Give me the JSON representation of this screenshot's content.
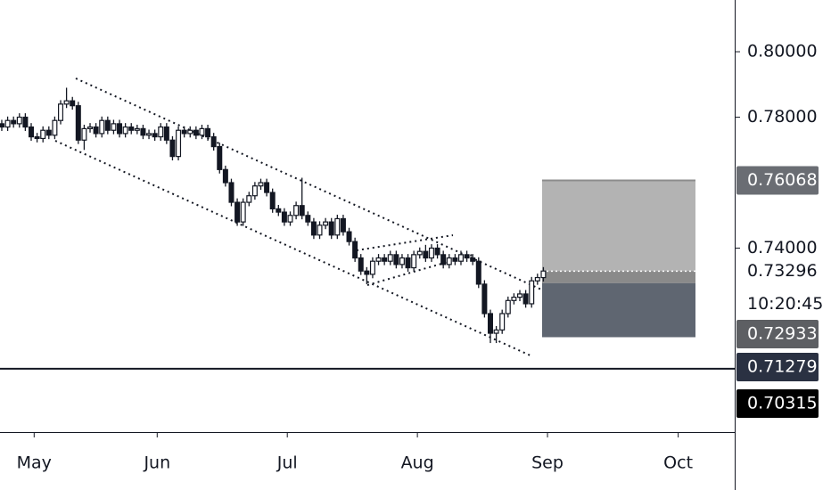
{
  "chart_data": {
    "type": "candlestick",
    "open": [
      0.778,
      0.777,
      0.779,
      0.778,
      0.78,
      0.777,
      0.774,
      0.7735,
      0.776,
      0.7745,
      0.779,
      0.784,
      0.785,
      0.7835,
      0.773,
      0.7765,
      0.777,
      0.775,
      0.779,
      0.776,
      0.778,
      0.775,
      0.777,
      0.776,
      0.7765,
      0.7745,
      0.775,
      0.774,
      0.777,
      0.773,
      0.768,
      0.776,
      0.775,
      0.776,
      0.7745,
      0.7765,
      0.774,
      0.771,
      0.764,
      0.76,
      0.754,
      0.748,
      0.754,
      0.756,
      0.759,
      0.76,
      0.757,
      0.752,
      0.751,
      0.748,
      0.75,
      0.753,
      0.75,
      0.748,
      0.744,
      0.747,
      0.748,
      0.744,
      0.749,
      0.745,
      0.742,
      0.737,
      0.733,
      0.732,
      0.736,
      0.737,
      0.736,
      0.738,
      0.735,
      0.737,
      0.734,
      0.738,
      0.739,
      0.737,
      0.74,
      0.738,
      0.735,
      0.737,
      0.736,
      0.738,
      0.737,
      0.736,
      0.729,
      0.72,
      0.714,
      0.715,
      0.72,
      0.724,
      0.725,
      0.726,
      0.723,
      0.73,
      0.731
    ],
    "high": [
      0.7792,
      0.7802,
      0.7802,
      0.7812,
      0.7812,
      0.7782,
      0.7752,
      0.7772,
      0.7772,
      0.7802,
      0.7852,
      0.789,
      0.7862,
      0.7847,
      0.7777,
      0.7782,
      0.7782,
      0.7802,
      0.7802,
      0.7792,
      0.7792,
      0.7782,
      0.7782,
      0.7777,
      0.7777,
      0.7762,
      0.7762,
      0.7782,
      0.7782,
      0.7742,
      0.7772,
      0.7772,
      0.7772,
      0.7772,
      0.7777,
      0.7777,
      0.7752,
      0.7722,
      0.7652,
      0.7612,
      0.7552,
      0.7552,
      0.7572,
      0.7602,
      0.7612,
      0.7612,
      0.7582,
      0.7532,
      0.7522,
      0.7512,
      0.7542,
      0.7615,
      0.7512,
      0.7492,
      0.7482,
      0.7492,
      0.7492,
      0.7502,
      0.7502,
      0.7462,
      0.7432,
      0.7382,
      0.7342,
      0.7372,
      0.7382,
      0.7382,
      0.7392,
      0.7392,
      0.7382,
      0.7382,
      0.7392,
      0.7402,
      0.741,
      0.7412,
      0.7412,
      0.7392,
      0.7382,
      0.7382,
      0.7392,
      0.7392,
      0.7382,
      0.7372,
      0.7302,
      0.7212,
      0.7162,
      0.7212,
      0.7252,
      0.7262,
      0.7272,
      0.7272,
      0.7312,
      0.7322,
      0.7342
    ],
    "low": [
      0.7758,
      0.7758,
      0.7768,
      0.7768,
      0.7758,
      0.7728,
      0.7723,
      0.7723,
      0.7733,
      0.7733,
      0.7778,
      0.7828,
      0.7823,
      0.7718,
      0.77,
      0.7753,
      0.7738,
      0.7738,
      0.7748,
      0.7748,
      0.7738,
      0.7738,
      0.7748,
      0.7748,
      0.7733,
      0.7733,
      0.7728,
      0.7728,
      0.7718,
      0.7668,
      0.7668,
      0.7738,
      0.7738,
      0.7733,
      0.7733,
      0.7728,
      0.7698,
      0.7628,
      0.7588,
      0.7528,
      0.7468,
      0.7468,
      0.7528,
      0.7548,
      0.7578,
      0.7558,
      0.7508,
      0.7498,
      0.7468,
      0.7468,
      0.7488,
      0.7488,
      0.7468,
      0.7428,
      0.7428,
      0.7458,
      0.7428,
      0.7428,
      0.7438,
      0.7408,
      0.7358,
      0.7318,
      0.729,
      0.7308,
      0.7348,
      0.7348,
      0.7348,
      0.7338,
      0.7338,
      0.7328,
      0.7328,
      0.7368,
      0.7358,
      0.7358,
      0.7368,
      0.7338,
      0.7338,
      0.7348,
      0.7348,
      0.7358,
      0.7348,
      0.7278,
      0.7188,
      0.711,
      0.711,
      0.7138,
      0.7188,
      0.7228,
      0.7238,
      0.7218,
      0.7218,
      0.7288,
      0.7298
    ],
    "close": [
      0.777,
      0.779,
      0.778,
      0.78,
      0.777,
      0.774,
      0.7735,
      0.776,
      0.7745,
      0.779,
      0.784,
      0.785,
      0.7835,
      0.773,
      0.7765,
      0.777,
      0.775,
      0.779,
      0.776,
      0.778,
      0.775,
      0.777,
      0.776,
      0.7765,
      0.7745,
      0.775,
      0.774,
      0.777,
      0.773,
      0.768,
      0.776,
      0.775,
      0.776,
      0.7745,
      0.7765,
      0.774,
      0.771,
      0.764,
      0.76,
      0.754,
      0.748,
      0.754,
      0.756,
      0.759,
      0.76,
      0.757,
      0.752,
      0.751,
      0.748,
      0.75,
      0.753,
      0.75,
      0.748,
      0.744,
      0.747,
      0.748,
      0.744,
      0.749,
      0.745,
      0.742,
      0.737,
      0.733,
      0.732,
      0.736,
      0.737,
      0.736,
      0.738,
      0.735,
      0.737,
      0.734,
      0.738,
      0.739,
      0.737,
      0.74,
      0.738,
      0.735,
      0.737,
      0.736,
      0.738,
      0.737,
      0.736,
      0.729,
      0.72,
      0.714,
      0.715,
      0.72,
      0.724,
      0.725,
      0.726,
      0.723,
      0.73,
      0.731,
      0.733
    ],
    "up_color": "#ffffff",
    "down_color": "#131722",
    "xlim": [
      -0.3,
      124.5
    ],
    "xticks": [
      {
        "value": 5.5,
        "label": "May"
      },
      {
        "value": 26.4,
        "label": "Jun"
      },
      {
        "value": 48.5,
        "label": "Jul"
      },
      {
        "value": 70.6,
        "label": "Aug"
      },
      {
        "value": 92.7,
        "label": "Sep"
      },
      {
        "value": 114.9,
        "label": "Oct"
      }
    ],
    "ylim": [
      0.6838,
      0.8158
    ],
    "yticks": [
      {
        "value": 0.8,
        "label": "0.80000"
      },
      {
        "value": 0.78,
        "label": "0.78000"
      },
      {
        "value": 0.74,
        "label": "0.74000"
      }
    ],
    "position": {
      "target": 0.76068,
      "entry": 0.72933,
      "stop": 0.71279
    },
    "current_price": 0.73296,
    "countdown": "10:20:45",
    "level": 0.70315
  }
}
